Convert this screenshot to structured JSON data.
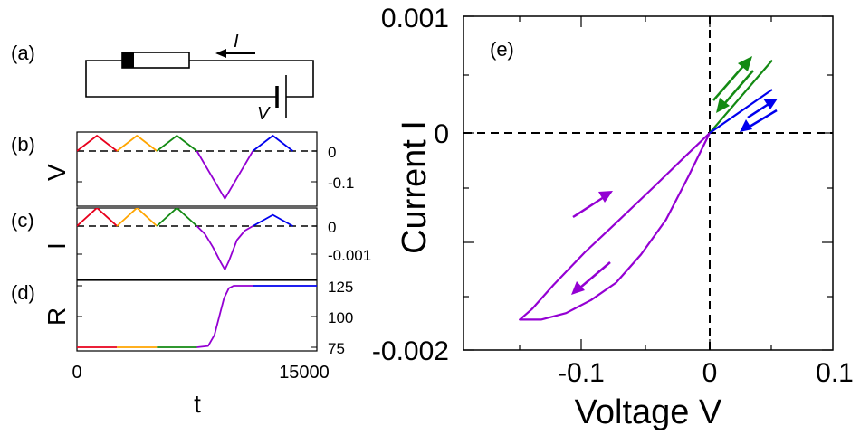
{
  "colors": {
    "red": "#e8001c",
    "orange": "#ffa500",
    "green": "#138a13",
    "purple": "#9400d3",
    "blue": "#0000ee"
  },
  "panels": {
    "a": {
      "label": "(a)",
      "current_label": "I",
      "voltage_label": "V"
    },
    "b": {
      "label": "(b)",
      "ylabel": "V",
      "ticks": [
        "0",
        "-0.1"
      ]
    },
    "c": {
      "label": "(c)",
      "ylabel": "I",
      "ticks": [
        "0",
        "-0.001"
      ]
    },
    "d": {
      "label": "(d)",
      "ylabel": "R",
      "ticks": [
        "125",
        "100",
        "75"
      ],
      "xlabel": "t",
      "xticks": [
        "0",
        "15000"
      ]
    },
    "e": {
      "label": "(e)"
    }
  },
  "chart_data": [
    {
      "panel": "b",
      "type": "line",
      "xlabel": "",
      "ylabel": "V",
      "xlim": [
        0,
        15000
      ],
      "ylim": [
        -0.155,
        0.045
      ],
      "series": [
        {
          "color": "red",
          "points": [
            [
              0,
              0
            ],
            [
              1250,
              0.05
            ],
            [
              2500,
              0
            ]
          ]
        },
        {
          "color": "orange",
          "points": [
            [
              2500,
              0
            ],
            [
              3750,
              0.05
            ],
            [
              5000,
              0
            ]
          ]
        },
        {
          "color": "green",
          "points": [
            [
              5000,
              0
            ],
            [
              6250,
              0.05
            ],
            [
              7500,
              0
            ]
          ]
        },
        {
          "color": "purple",
          "points": [
            [
              7500,
              0
            ],
            [
              9250,
              -0.155
            ],
            [
              11000,
              0
            ]
          ]
        },
        {
          "color": "blue",
          "points": [
            [
              11000,
              0
            ],
            [
              12250,
              0.05
            ],
            [
              13500,
              0
            ]
          ]
        }
      ]
    },
    {
      "panel": "c",
      "type": "line",
      "xlabel": "",
      "ylabel": "I",
      "xlim": [
        0,
        15000
      ],
      "ylim": [
        -0.0015,
        0.0005
      ],
      "series": [
        {
          "color": "red",
          "points": [
            [
              0,
              0
            ],
            [
              1250,
              0.00065
            ],
            [
              2500,
              0
            ]
          ]
        },
        {
          "color": "orange",
          "points": [
            [
              2500,
              0
            ],
            [
              3750,
              0.00065
            ],
            [
              5000,
              0
            ]
          ]
        },
        {
          "color": "green",
          "points": [
            [
              5000,
              0
            ],
            [
              6250,
              0.00065
            ],
            [
              7500,
              0
            ]
          ]
        },
        {
          "color": "purple",
          "points": [
            [
              7500,
              0
            ],
            [
              8000,
              -0.00028
            ],
            [
              8500,
              -0.00075
            ],
            [
              9000,
              -0.0013
            ],
            [
              9250,
              -0.00155
            ],
            [
              9500,
              -0.00125
            ],
            [
              10000,
              -0.0005
            ],
            [
              10500,
              -0.00016
            ],
            [
              11000,
              0
            ]
          ]
        },
        {
          "color": "blue",
          "points": [
            [
              11000,
              0
            ],
            [
              12250,
              0.0004
            ],
            [
              13500,
              0
            ]
          ]
        }
      ]
    },
    {
      "panel": "d",
      "type": "line",
      "xlabel": "t",
      "ylabel": "R",
      "xlim": [
        0,
        15000
      ],
      "ylim": [
        75,
        125
      ],
      "yticks": [
        125,
        100,
        75
      ],
      "xticks": [
        0,
        15000
      ],
      "series": [
        {
          "color": "red",
          "points": [
            [
              0,
              75
            ],
            [
              2500,
              75
            ]
          ]
        },
        {
          "color": "orange",
          "points": [
            [
              2500,
              75
            ],
            [
              5000,
              75
            ]
          ]
        },
        {
          "color": "green",
          "points": [
            [
              5000,
              75
            ],
            [
              7500,
              75
            ]
          ]
        },
        {
          "color": "purple",
          "points": [
            [
              7500,
              75
            ],
            [
              8200,
              76
            ],
            [
              8600,
              85
            ],
            [
              8900,
              100
            ],
            [
              9200,
              115
            ],
            [
              9500,
              123
            ],
            [
              9800,
              125
            ],
            [
              11000,
              125
            ]
          ]
        },
        {
          "color": "blue",
          "points": [
            [
              11000,
              125
            ],
            [
              15000,
              125
            ]
          ]
        }
      ]
    },
    {
      "panel": "e",
      "type": "line",
      "xlabel": "Voltage V",
      "ylabel": "Current I",
      "xlim": [
        -0.2,
        0.1
      ],
      "ylim": [
        -0.002,
        0.001
      ],
      "xticks": [
        "-0.1",
        "0",
        "0.1"
      ],
      "yticks": [
        "0.001",
        "0",
        "-0.002"
      ],
      "series": [
        {
          "color": "purple",
          "points": [
            [
              0,
              0
            ],
            [
              -0.02,
              -0.00022
            ],
            [
              -0.045,
              -0.0005
            ],
            [
              -0.075,
              -0.00083
            ],
            [
              -0.1,
              -0.0011
            ],
            [
              -0.125,
              -0.0014
            ],
            [
              -0.142,
              -0.00162
            ],
            [
              -0.152,
              -0.00172
            ],
            [
              -0.135,
              -0.00172
            ],
            [
              -0.115,
              -0.00166
            ],
            [
              -0.095,
              -0.00154
            ],
            [
              -0.075,
              -0.00138
            ],
            [
              -0.055,
              -0.00112
            ],
            [
              -0.035,
              -0.0008
            ],
            [
              -0.017,
              -0.0004
            ],
            [
              0,
              0
            ]
          ]
        },
        {
          "color": "green",
          "points": [
            [
              0,
              0
            ],
            [
              0.05,
              0.00067
            ]
          ]
        },
        {
          "color": "blue",
          "points": [
            [
              0,
              0
            ],
            [
              0.05,
              0.0004
            ]
          ]
        }
      ]
    }
  ]
}
